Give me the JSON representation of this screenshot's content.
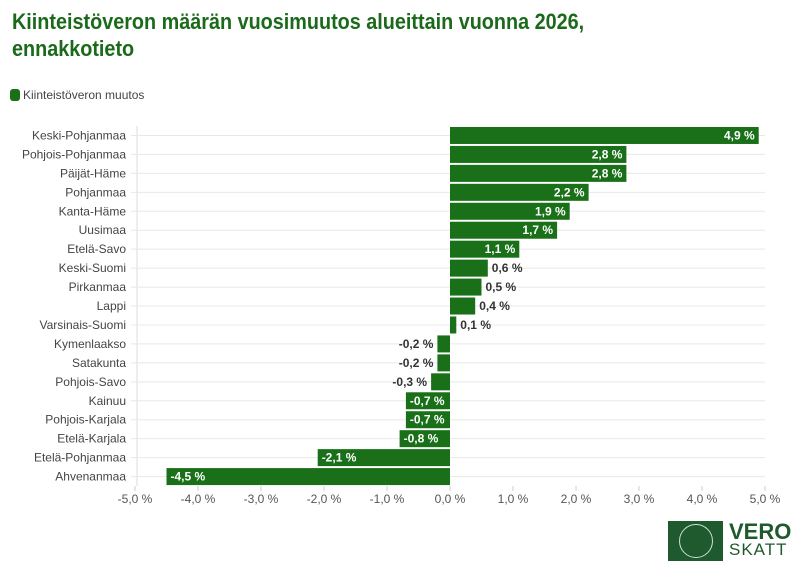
{
  "chart_data": {
    "type": "bar",
    "orientation": "horizontal",
    "title": "Kiinteistöveron määrän vuosimuutos alueittain vuonna 2026, ennakkotieto",
    "series": [
      {
        "name": "Kiinteistöveron muutos",
        "color": "#1a7018",
        "values": [
          4.9,
          2.8,
          2.8,
          2.2,
          1.9,
          1.7,
          1.1,
          0.6,
          0.5,
          0.4,
          0.1,
          -0.2,
          -0.2,
          -0.3,
          -0.7,
          -0.7,
          -0.8,
          -2.1,
          -4.5
        ]
      }
    ],
    "categories": [
      "Keski-Pohjanmaa",
      "Pohjois-Pohjanmaa",
      "Päijät-Häme",
      "Pohjanmaa",
      "Kanta-Häme",
      "Uusimaa",
      "Etelä-Savo",
      "Keski-Suomi",
      "Pirkanmaa",
      "Lappi",
      "Varsinais-Suomi",
      "Kymenlaakso",
      "Satakunta",
      "Pohjois-Savo",
      "Kainuu",
      "Pohjois-Karjala",
      "Etelä-Karjala",
      "Etelä-Pohjanmaa",
      "Ahvenanmaa"
    ],
    "xlim": [
      -5,
      5
    ],
    "xticks": [
      "-5,0 %",
      "-4,0 %",
      "-3,0 %",
      "-2,0 %",
      "-1,0 %",
      "0,0 %",
      "1,0 %",
      "2,0 %",
      "3,0 %",
      "4,0 %",
      "5,0 %"
    ],
    "legend": "top-left",
    "grid": "horizontal"
  },
  "logo": {
    "line1": "VERO",
    "line2": "SKATT"
  }
}
